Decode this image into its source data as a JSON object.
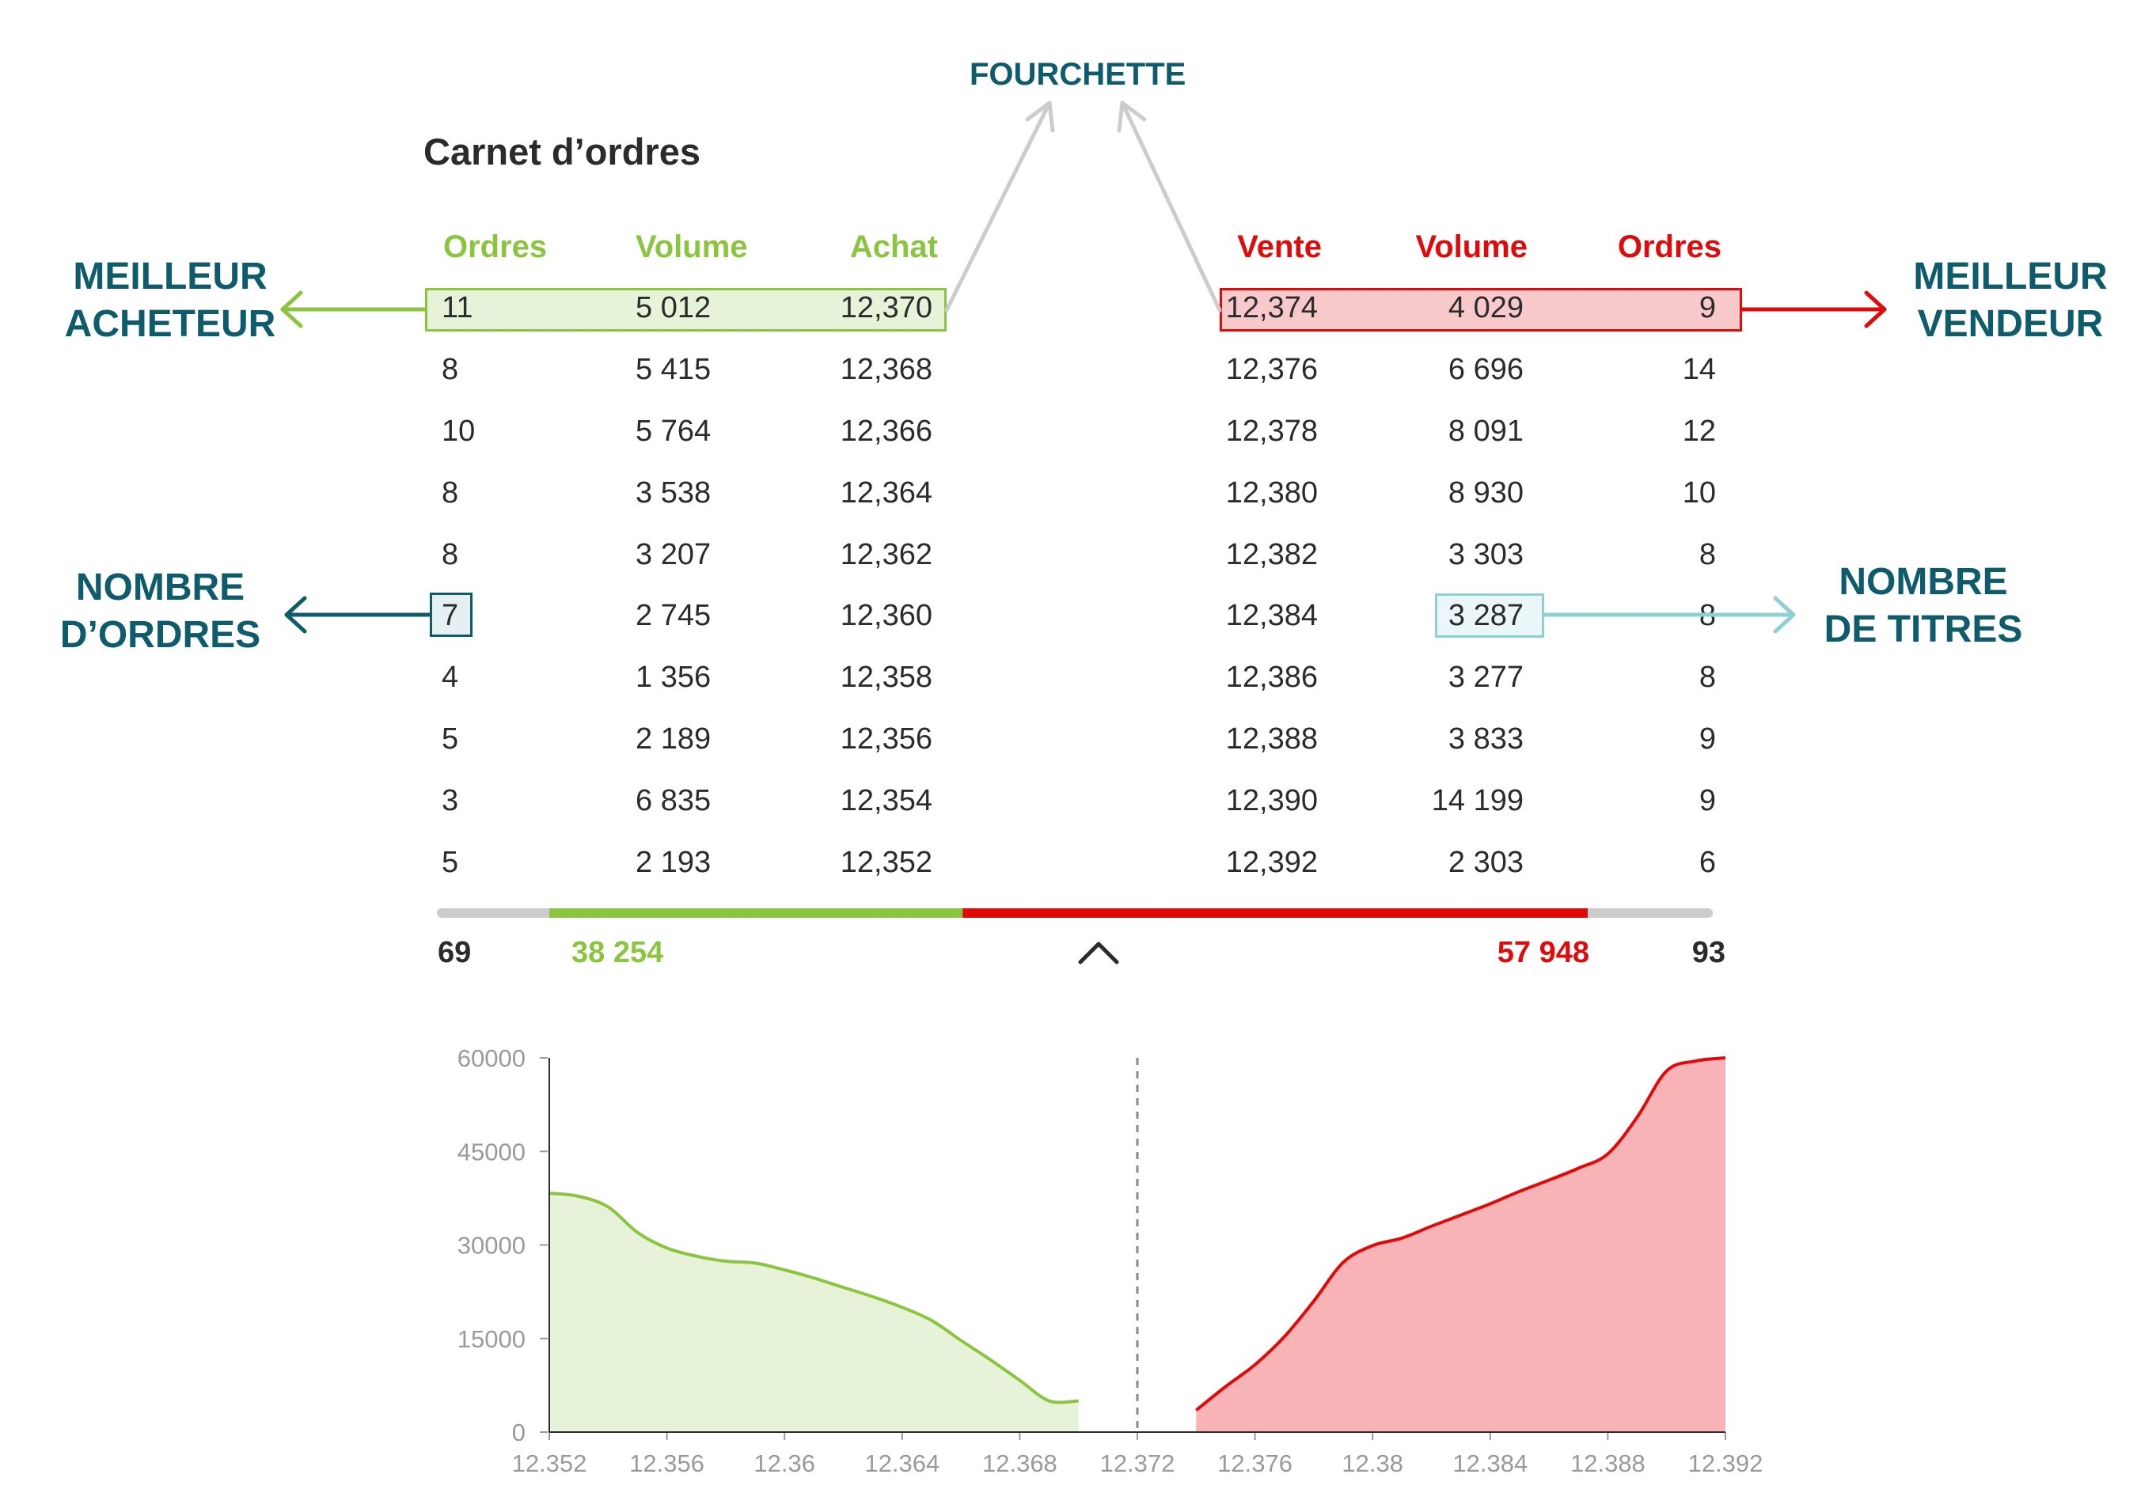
{
  "title": "Carnet d’ordres",
  "callouts": {
    "fourchette": "FOURCHETTE",
    "best_buyer": [
      "MEILLEUR",
      "ACHETEUR"
    ],
    "best_seller": [
      "MEILLEUR",
      "VENDEUR"
    ],
    "order_count": [
      "NOMBRE",
      "D’ORDRES"
    ],
    "share_count": [
      "NOMBRE",
      "DE TITRES"
    ]
  },
  "buy_headers": [
    "Ordres",
    "Volume",
    "Achat"
  ],
  "sell_headers": [
    "Vente",
    "Volume",
    "Ordres"
  ],
  "buy_rows": [
    [
      "11",
      "5 012",
      "12,370"
    ],
    [
      "8",
      "5 415",
      "12,368"
    ],
    [
      "10",
      "5 764",
      "12,366"
    ],
    [
      "8",
      "3 538",
      "12,364"
    ],
    [
      "8",
      "3 207",
      "12,362"
    ],
    [
      "7",
      "2 745",
      "12,360"
    ],
    [
      "4",
      "1 356",
      "12,358"
    ],
    [
      "5",
      "2 189",
      "12,356"
    ],
    [
      "3",
      "6 835",
      "12,354"
    ],
    [
      "5",
      "2 193",
      "12,352"
    ]
  ],
  "sell_rows": [
    [
      "12,374",
      "4 029",
      "9"
    ],
    [
      "12,376",
      "6 696",
      "14"
    ],
    [
      "12,378",
      "8 091",
      "12"
    ],
    [
      "12,380",
      "8 930",
      "10"
    ],
    [
      "12,382",
      "3 303",
      "8"
    ],
    [
      "12,384",
      "3 287",
      "8"
    ],
    [
      "12,386",
      "3 277",
      "8"
    ],
    [
      "12,388",
      "3 833",
      "9"
    ],
    [
      "12,390",
      "14 199",
      "9"
    ],
    [
      "12,392",
      "2 303",
      "6"
    ]
  ],
  "totals": {
    "buy_orders": "69",
    "buy_volume": "38 254",
    "sell_volume": "57 948",
    "sell_orders": "93",
    "buy_fraction": 0.398,
    "sell_fraction": 0.602
  },
  "colors": {
    "buy": "#8bc53f",
    "buy_fill": "#e6f3d8",
    "sell": "#e10a0a",
    "sell_fill": "#f7b3b5",
    "teal": "#0d5b6b",
    "light_teal": "#8fd0d6",
    "gray": "#cccccc"
  },
  "chart_data": {
    "type": "area",
    "title": "",
    "xlabel": "",
    "ylabel": "",
    "xlim": [
      12.352,
      12.392
    ],
    "ylim": [
      0,
      60000
    ],
    "x_ticks": [
      "12.352",
      "12.356",
      "12.36",
      "12.364",
      "12.368",
      "12.372",
      "12.376",
      "12.38",
      "12.384",
      "12.388",
      "12.392"
    ],
    "x_tick_values": [
      12.352,
      12.356,
      12.36,
      12.364,
      12.368,
      12.372,
      12.376,
      12.38,
      12.384,
      12.388,
      12.392
    ],
    "y_ticks": [
      "0",
      "15000",
      "30000",
      "45000",
      "60000"
    ],
    "y_tick_values": [
      0,
      15000,
      30000,
      45000,
      60000
    ],
    "spread_marker_x": 12.372,
    "series": [
      {
        "name": "Achat",
        "x": [
          12.352,
          12.353,
          12.354,
          12.355,
          12.356,
          12.357,
          12.358,
          12.359,
          12.36,
          12.361,
          12.362,
          12.363,
          12.364,
          12.365,
          12.366,
          12.367,
          12.368,
          12.369,
          12.37
        ],
        "y": [
          38300,
          37800,
          36100,
          32000,
          29500,
          28200,
          27400,
          27100,
          26000,
          24700,
          23200,
          21700,
          20000,
          17900,
          14700,
          11600,
          8300,
          5000,
          5000
        ]
      },
      {
        "name": "Vente",
        "x": [
          12.374,
          12.375,
          12.376,
          12.377,
          12.378,
          12.379,
          12.38,
          12.381,
          12.382,
          12.383,
          12.384,
          12.385,
          12.386,
          12.387,
          12.388,
          12.389,
          12.39,
          12.391,
          12.392
        ],
        "y": [
          3500,
          7300,
          10800,
          15300,
          21000,
          27200,
          29900,
          31100,
          33000,
          34800,
          36600,
          38600,
          40400,
          42300,
          44600,
          50500,
          57900,
          59500,
          60000
        ]
      }
    ]
  }
}
